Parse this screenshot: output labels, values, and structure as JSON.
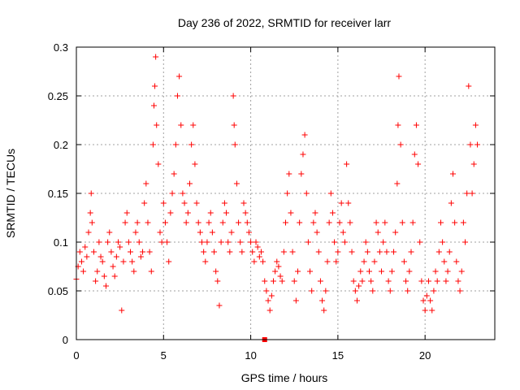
{
  "chart_data": {
    "type": "scatter",
    "title": "Day 236 of 2022, SRMTID for receiver larr",
    "xlabel": "GPS time / hours",
    "ylabel": "SRMTID / TECUs",
    "xlim": [
      0,
      24
    ],
    "ylim": [
      0,
      0.3
    ],
    "x_ticks": [
      0,
      5,
      10,
      15,
      20
    ],
    "x_tick_labels": [
      "0",
      "5",
      "10",
      "15",
      "20"
    ],
    "y_ticks": [
      0,
      0.05,
      0.1,
      0.15,
      0.2,
      0.25,
      0.3
    ],
    "y_tick_labels": [
      "0",
      "0.05",
      "0.1",
      "0.15",
      "0.2",
      "0.25",
      "0.3"
    ],
    "grid": true,
    "marker": "plus",
    "color": "#ff0000",
    "series": [
      {
        "name": "SRMTID",
        "points": [
          [
            0.0,
            0.062
          ],
          [
            0.1,
            0.075
          ],
          [
            0.2,
            0.09
          ],
          [
            0.3,
            0.08
          ],
          [
            0.4,
            0.07
          ],
          [
            0.5,
            0.095
          ],
          [
            0.6,
            0.085
          ],
          [
            0.7,
            0.11
          ],
          [
            0.8,
            0.13
          ],
          [
            0.85,
            0.15
          ],
          [
            0.9,
            0.12
          ],
          [
            1.0,
            0.09
          ],
          [
            1.1,
            0.06
          ],
          [
            1.2,
            0.07
          ],
          [
            1.3,
            0.1
          ],
          [
            1.4,
            0.085
          ],
          [
            1.5,
            0.08
          ],
          [
            1.6,
            0.065
          ],
          [
            1.7,
            0.055
          ],
          [
            1.8,
            0.1
          ],
          [
            1.9,
            0.11
          ],
          [
            2.0,
            0.09
          ],
          [
            2.1,
            0.075
          ],
          [
            2.2,
            0.065
          ],
          [
            2.3,
            0.085
          ],
          [
            2.4,
            0.1
          ],
          [
            2.5,
            0.095
          ],
          [
            2.6,
            0.03
          ],
          [
            2.7,
            0.08
          ],
          [
            2.8,
            0.12
          ],
          [
            2.9,
            0.13
          ],
          [
            3.0,
            0.1
          ],
          [
            3.1,
            0.09
          ],
          [
            3.2,
            0.08
          ],
          [
            3.3,
            0.07
          ],
          [
            3.4,
            0.11
          ],
          [
            3.5,
            0.12
          ],
          [
            3.6,
            0.1
          ],
          [
            3.7,
            0.085
          ],
          [
            3.8,
            0.09
          ],
          [
            3.9,
            0.14
          ],
          [
            4.0,
            0.16
          ],
          [
            4.1,
            0.12
          ],
          [
            4.2,
            0.09
          ],
          [
            4.3,
            0.07
          ],
          [
            4.4,
            0.2
          ],
          [
            4.45,
            0.24
          ],
          [
            4.5,
            0.26
          ],
          [
            4.55,
            0.29
          ],
          [
            4.6,
            0.22
          ],
          [
            4.7,
            0.18
          ],
          [
            4.8,
            0.11
          ],
          [
            4.9,
            0.1
          ],
          [
            5.0,
            0.14
          ],
          [
            5.1,
            0.12
          ],
          [
            5.2,
            0.1
          ],
          [
            5.3,
            0.08
          ],
          [
            5.4,
            0.13
          ],
          [
            5.5,
            0.15
          ],
          [
            5.6,
            0.17
          ],
          [
            5.7,
            0.2
          ],
          [
            5.8,
            0.25
          ],
          [
            5.9,
            0.27
          ],
          [
            6.0,
            0.22
          ],
          [
            6.1,
            0.15
          ],
          [
            6.2,
            0.14
          ],
          [
            6.3,
            0.12
          ],
          [
            6.4,
            0.13
          ],
          [
            6.5,
            0.16
          ],
          [
            6.6,
            0.2
          ],
          [
            6.7,
            0.22
          ],
          [
            6.8,
            0.18
          ],
          [
            6.9,
            0.14
          ],
          [
            7.0,
            0.12
          ],
          [
            7.1,
            0.11
          ],
          [
            7.2,
            0.1
          ],
          [
            7.3,
            0.09
          ],
          [
            7.4,
            0.08
          ],
          [
            7.5,
            0.1
          ],
          [
            7.6,
            0.12
          ],
          [
            7.7,
            0.13
          ],
          [
            7.8,
            0.11
          ],
          [
            7.9,
            0.09
          ],
          [
            8.0,
            0.07
          ],
          [
            8.1,
            0.06
          ],
          [
            8.2,
            0.035
          ],
          [
            8.3,
            0.1
          ],
          [
            8.4,
            0.12
          ],
          [
            8.5,
            0.14
          ],
          [
            8.6,
            0.13
          ],
          [
            8.7,
            0.1
          ],
          [
            8.8,
            0.09
          ],
          [
            8.9,
            0.11
          ],
          [
            9.0,
            0.25
          ],
          [
            9.05,
            0.22
          ],
          [
            9.1,
            0.2
          ],
          [
            9.2,
            0.16
          ],
          [
            9.3,
            0.12
          ],
          [
            9.4,
            0.1
          ],
          [
            9.5,
            0.09
          ],
          [
            9.6,
            0.14
          ],
          [
            9.7,
            0.13
          ],
          [
            9.8,
            0.12
          ],
          [
            9.9,
            0.11
          ],
          [
            10.0,
            0.1
          ],
          [
            10.1,
            0.09
          ],
          [
            10.2,
            0.08
          ],
          [
            10.3,
            0.1
          ],
          [
            10.4,
            0.095
          ],
          [
            10.5,
            0.085
          ],
          [
            10.6,
            0.09
          ],
          [
            10.7,
            0.08
          ],
          [
            10.8,
            0.06
          ],
          [
            10.9,
            0.05
          ],
          [
            11.0,
            0.04
          ],
          [
            11.1,
            0.03
          ],
          [
            11.2,
            0.045
          ],
          [
            11.3,
            0.06
          ],
          [
            11.4,
            0.07
          ],
          [
            11.5,
            0.08
          ],
          [
            11.6,
            0.075
          ],
          [
            11.7,
            0.065
          ],
          [
            11.8,
            0.06
          ],
          [
            11.9,
            0.09
          ],
          [
            12.0,
            0.12
          ],
          [
            12.1,
            0.15
          ],
          [
            12.2,
            0.17
          ],
          [
            12.3,
            0.13
          ],
          [
            12.4,
            0.09
          ],
          [
            12.5,
            0.06
          ],
          [
            12.6,
            0.04
          ],
          [
            12.7,
            0.07
          ],
          [
            12.8,
            0.12
          ],
          [
            12.9,
            0.17
          ],
          [
            13.0,
            0.19
          ],
          [
            13.1,
            0.21
          ],
          [
            13.2,
            0.15
          ],
          [
            13.3,
            0.1
          ],
          [
            13.4,
            0.07
          ],
          [
            13.5,
            0.05
          ],
          [
            13.6,
            0.12
          ],
          [
            13.7,
            0.13
          ],
          [
            13.8,
            0.11
          ],
          [
            13.9,
            0.09
          ],
          [
            14.0,
            0.06
          ],
          [
            14.1,
            0.04
          ],
          [
            14.2,
            0.03
          ],
          [
            14.3,
            0.05
          ],
          [
            14.4,
            0.08
          ],
          [
            14.5,
            0.12
          ],
          [
            14.6,
            0.15
          ],
          [
            14.7,
            0.13
          ],
          [
            14.8,
            0.1
          ],
          [
            14.9,
            0.08
          ],
          [
            15.0,
            0.09
          ],
          [
            15.1,
            0.12
          ],
          [
            15.2,
            0.14
          ],
          [
            15.3,
            0.11
          ],
          [
            15.4,
            0.1
          ],
          [
            15.5,
            0.18
          ],
          [
            15.6,
            0.14
          ],
          [
            15.7,
            0.12
          ],
          [
            15.8,
            0.09
          ],
          [
            15.9,
            0.06
          ],
          [
            16.0,
            0.05
          ],
          [
            16.1,
            0.04
          ],
          [
            16.2,
            0.055
          ],
          [
            16.3,
            0.07
          ],
          [
            16.4,
            0.06
          ],
          [
            16.5,
            0.08
          ],
          [
            16.6,
            0.1
          ],
          [
            16.7,
            0.09
          ],
          [
            16.8,
            0.07
          ],
          [
            16.9,
            0.06
          ],
          [
            17.0,
            0.05
          ],
          [
            17.1,
            0.08
          ],
          [
            17.2,
            0.12
          ],
          [
            17.3,
            0.11
          ],
          [
            17.4,
            0.09
          ],
          [
            17.5,
            0.07
          ],
          [
            17.6,
            0.1
          ],
          [
            17.7,
            0.12
          ],
          [
            17.8,
            0.09
          ],
          [
            17.9,
            0.06
          ],
          [
            18.0,
            0.05
          ],
          [
            18.1,
            0.07
          ],
          [
            18.2,
            0.09
          ],
          [
            18.3,
            0.11
          ],
          [
            18.4,
            0.16
          ],
          [
            18.45,
            0.22
          ],
          [
            18.5,
            0.27
          ],
          [
            18.6,
            0.2
          ],
          [
            18.7,
            0.12
          ],
          [
            18.8,
            0.08
          ],
          [
            18.9,
            0.06
          ],
          [
            19.0,
            0.05
          ],
          [
            19.1,
            0.07
          ],
          [
            19.2,
            0.09
          ],
          [
            19.3,
            0.12
          ],
          [
            19.4,
            0.19
          ],
          [
            19.5,
            0.22
          ],
          [
            19.6,
            0.18
          ],
          [
            19.7,
            0.1
          ],
          [
            19.8,
            0.06
          ],
          [
            19.9,
            0.04
          ],
          [
            20.0,
            0.03
          ],
          [
            20.1,
            0.045
          ],
          [
            20.2,
            0.06
          ],
          [
            20.3,
            0.04
          ],
          [
            20.4,
            0.03
          ],
          [
            20.5,
            0.05
          ],
          [
            20.6,
            0.07
          ],
          [
            20.7,
            0.06
          ],
          [
            20.8,
            0.09
          ],
          [
            20.9,
            0.12
          ],
          [
            21.0,
            0.1
          ],
          [
            21.1,
            0.08
          ],
          [
            21.2,
            0.06
          ],
          [
            21.3,
            0.07
          ],
          [
            21.4,
            0.09
          ],
          [
            21.5,
            0.14
          ],
          [
            21.6,
            0.17
          ],
          [
            21.7,
            0.12
          ],
          [
            21.8,
            0.08
          ],
          [
            21.9,
            0.06
          ],
          [
            22.0,
            0.05
          ],
          [
            22.1,
            0.07
          ],
          [
            22.2,
            0.12
          ],
          [
            22.3,
            0.1
          ],
          [
            22.4,
            0.15
          ],
          [
            22.5,
            0.26
          ],
          [
            22.6,
            0.2
          ],
          [
            22.7,
            0.15
          ],
          [
            22.8,
            0.18
          ],
          [
            22.9,
            0.22
          ],
          [
            23.0,
            0.2
          ]
        ]
      }
    ],
    "zero_marker": {
      "x": 10.8,
      "y": 0
    }
  }
}
